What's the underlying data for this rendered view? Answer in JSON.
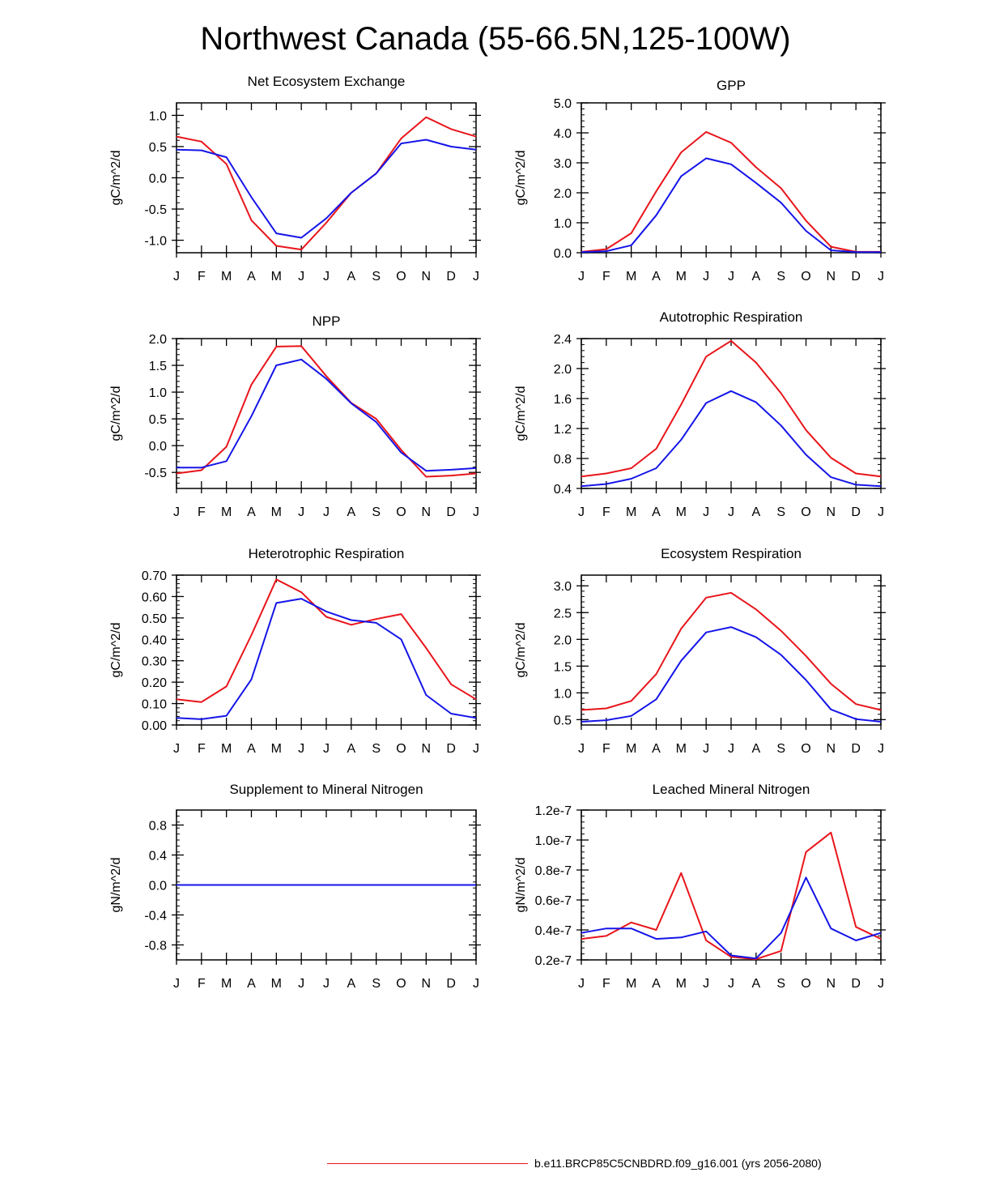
{
  "title": "Northwest Canada (55-66.5N,125-100W)",
  "colors": {
    "series_red": "#e8151b",
    "series_blue": "#1515e8",
    "axis": "#000000"
  },
  "months": [
    "J",
    "F",
    "M",
    "A",
    "M",
    "J",
    "J",
    "A",
    "S",
    "O",
    "N",
    "D",
    "J"
  ],
  "legend": {
    "label": "b.e11.BRCP85C5CNBDRD.f09_g16.001 (yrs 2056-2080)",
    "color": "#e8151b"
  },
  "chart_data": [
    {
      "type": "line",
      "title": "Net Ecosystem Exchange",
      "ylabel": "gC/m^2/d",
      "ylim": [
        -1.2,
        1.2
      ],
      "yticks": [
        "1.0",
        "0.5",
        "0.0",
        "-0.5",
        "-1.0"
      ],
      "yticks_values": [
        1.0,
        0.5,
        0.0,
        -0.5,
        -1.0
      ],
      "categories": [
        "J",
        "F",
        "M",
        "A",
        "M",
        "J",
        "J",
        "A",
        "S",
        "O",
        "N",
        "D",
        "J"
      ],
      "series": [
        {
          "name": "red",
          "values": [
            0.66,
            0.58,
            0.22,
            -0.68,
            -1.09,
            -1.15,
            -0.72,
            -0.24,
            0.07,
            0.63,
            0.97,
            0.78,
            0.66
          ]
        },
        {
          "name": "blue",
          "values": [
            0.45,
            0.44,
            0.33,
            -0.31,
            -0.89,
            -0.96,
            -0.65,
            -0.24,
            0.07,
            0.55,
            0.61,
            0.5,
            0.45
          ]
        }
      ]
    },
    {
      "type": "line",
      "title": "GPP",
      "ylabel": "gC/m^2/d",
      "ylim": [
        0.0,
        5.0
      ],
      "yticks": [
        "5.0",
        "4.0",
        "3.0",
        "2.0",
        "1.0",
        "0.0"
      ],
      "yticks_values": [
        5.0,
        4.0,
        3.0,
        2.0,
        1.0,
        0.0
      ],
      "categories": [
        "J",
        "F",
        "M",
        "A",
        "M",
        "J",
        "J",
        "A",
        "S",
        "O",
        "N",
        "D",
        "J"
      ],
      "series": [
        {
          "name": "red",
          "values": [
            0.03,
            0.12,
            0.65,
            2.05,
            3.35,
            4.03,
            3.67,
            2.85,
            2.15,
            1.07,
            0.2,
            0.03,
            0.03
          ]
        },
        {
          "name": "blue",
          "values": [
            0.02,
            0.05,
            0.25,
            1.25,
            2.55,
            3.15,
            2.95,
            2.33,
            1.67,
            0.73,
            0.08,
            0.02,
            0.02
          ]
        }
      ]
    },
    {
      "type": "line",
      "title": "NPP",
      "ylabel": "gC/m^2/d",
      "ylim": [
        -0.8,
        2.0
      ],
      "yticks": [
        "2.0",
        "1.5",
        "1.0",
        "0.5",
        "0.0",
        "-0.5"
      ],
      "yticks_values": [
        2.0,
        1.5,
        1.0,
        0.5,
        0.0,
        -0.5
      ],
      "categories": [
        "J",
        "F",
        "M",
        "A",
        "M",
        "J",
        "J",
        "A",
        "S",
        "O",
        "N",
        "D",
        "J"
      ],
      "series": [
        {
          "name": "red",
          "values": [
            -0.52,
            -0.46,
            -0.02,
            1.14,
            1.85,
            1.86,
            1.3,
            0.8,
            0.5,
            -0.08,
            -0.58,
            -0.56,
            -0.52
          ]
        },
        {
          "name": "blue",
          "values": [
            -0.41,
            -0.41,
            -0.29,
            0.55,
            1.5,
            1.61,
            1.25,
            0.79,
            0.44,
            -0.13,
            -0.47,
            -0.45,
            -0.42
          ]
        }
      ]
    },
    {
      "type": "line",
      "title": "Autotrophic Respiration",
      "ylabel": "gC/m^2/d",
      "ylim": [
        0.4,
        2.4
      ],
      "yticks": [
        "2.4",
        "2.0",
        "1.6",
        "1.2",
        "0.8",
        "0.4"
      ],
      "yticks_values": [
        2.4,
        2.0,
        1.6,
        1.2,
        0.8,
        0.4
      ],
      "categories": [
        "J",
        "F",
        "M",
        "A",
        "M",
        "J",
        "J",
        "A",
        "S",
        "O",
        "N",
        "D",
        "J"
      ],
      "series": [
        {
          "name": "red",
          "values": [
            0.56,
            0.6,
            0.67,
            0.93,
            1.52,
            2.16,
            2.37,
            2.08,
            1.67,
            1.18,
            0.81,
            0.6,
            0.56
          ]
        },
        {
          "name": "blue",
          "values": [
            0.43,
            0.46,
            0.53,
            0.67,
            1.05,
            1.54,
            1.7,
            1.55,
            1.24,
            0.85,
            0.55,
            0.45,
            0.43
          ]
        }
      ]
    },
    {
      "type": "line",
      "title": "Heterotrophic Respiration",
      "ylabel": "gC/m^2/d",
      "ylim": [
        0.0,
        0.7
      ],
      "yticks": [
        "0.70",
        "0.60",
        "0.50",
        "0.40",
        "0.30",
        "0.20",
        "0.10",
        "0.00"
      ],
      "yticks_values": [
        0.7,
        0.6,
        0.5,
        0.4,
        0.3,
        0.2,
        0.1,
        0.0
      ],
      "categories": [
        "J",
        "F",
        "M",
        "A",
        "M",
        "J",
        "J",
        "A",
        "S",
        "O",
        "N",
        "D",
        "J"
      ],
      "series": [
        {
          "name": "red",
          "values": [
            0.12,
            0.107,
            0.18,
            0.42,
            0.68,
            0.62,
            0.505,
            0.468,
            0.495,
            0.518,
            0.36,
            0.19,
            0.12
          ]
        },
        {
          "name": "blue",
          "values": [
            0.033,
            0.027,
            0.043,
            0.213,
            0.57,
            0.59,
            0.53,
            0.49,
            0.477,
            0.4,
            0.14,
            0.053,
            0.033
          ]
        }
      ]
    },
    {
      "type": "line",
      "title": "Ecosystem Respiration",
      "ylabel": "gC/m^2/d",
      "ylim": [
        0.4,
        3.2
      ],
      "yticks": [
        "3.0",
        "2.5",
        "2.0",
        "1.5",
        "1.0",
        "0.5"
      ],
      "yticks_values": [
        3.0,
        2.5,
        2.0,
        1.5,
        1.0,
        0.5
      ],
      "categories": [
        "J",
        "F",
        "M",
        "A",
        "M",
        "J",
        "J",
        "A",
        "S",
        "O",
        "N",
        "D",
        "J"
      ],
      "series": [
        {
          "name": "red",
          "values": [
            0.68,
            0.71,
            0.85,
            1.35,
            2.2,
            2.78,
            2.87,
            2.56,
            2.16,
            1.69,
            1.17,
            0.79,
            0.68
          ]
        },
        {
          "name": "blue",
          "values": [
            0.46,
            0.49,
            0.57,
            0.88,
            1.6,
            2.13,
            2.23,
            2.04,
            1.71,
            1.24,
            0.69,
            0.51,
            0.46
          ]
        }
      ]
    },
    {
      "type": "line",
      "title": "Supplement to Mineral Nitrogen",
      "ylabel": "gN/m^2/d",
      "ylim": [
        -1.0,
        1.0
      ],
      "yticks": [
        "0.8",
        "0.4",
        "0.0",
        "-0.4",
        "-0.8"
      ],
      "yticks_values": [
        0.8,
        0.4,
        0.0,
        -0.4,
        -0.8
      ],
      "categories": [
        "J",
        "F",
        "M",
        "A",
        "M",
        "J",
        "J",
        "A",
        "S",
        "O",
        "N",
        "D",
        "J"
      ],
      "series": [
        {
          "name": "blue",
          "values": [
            0,
            0,
            0,
            0,
            0,
            0,
            0,
            0,
            0,
            0,
            0,
            0,
            0
          ]
        }
      ]
    },
    {
      "type": "line",
      "title": "Leached Mineral Nitrogen",
      "ylabel": "gN/m^2/d",
      "ylim": [
        2e-08,
        1.2e-07
      ],
      "yticks": [
        "1.2e-7",
        "1.0e-7",
        "0.8e-7",
        "0.6e-7",
        "0.4e-7",
        "0.2e-7"
      ],
      "yticks_values": [
        1.2e-07,
        1e-07,
        8e-08,
        6e-08,
        4e-08,
        2e-08
      ],
      "categories": [
        "J",
        "F",
        "M",
        "A",
        "M",
        "J",
        "J",
        "A",
        "S",
        "O",
        "N",
        "D",
        "J"
      ],
      "series": [
        {
          "name": "red",
          "values": [
            3.4e-08,
            3.6e-08,
            4.5e-08,
            4e-08,
            7.8e-08,
            3.3e-08,
            2.2e-08,
            2.05e-08,
            2.6e-08,
            9.2e-08,
            1.05e-07,
            4.2e-08,
            3.4e-08
          ]
        },
        {
          "name": "blue",
          "values": [
            3.8e-08,
            4.1e-08,
            4.1e-08,
            3.4e-08,
            3.5e-08,
            3.9e-08,
            2.3e-08,
            2.1e-08,
            3.8e-08,
            7.5e-08,
            4.1e-08,
            3.3e-08,
            3.8e-08
          ]
        }
      ]
    }
  ]
}
